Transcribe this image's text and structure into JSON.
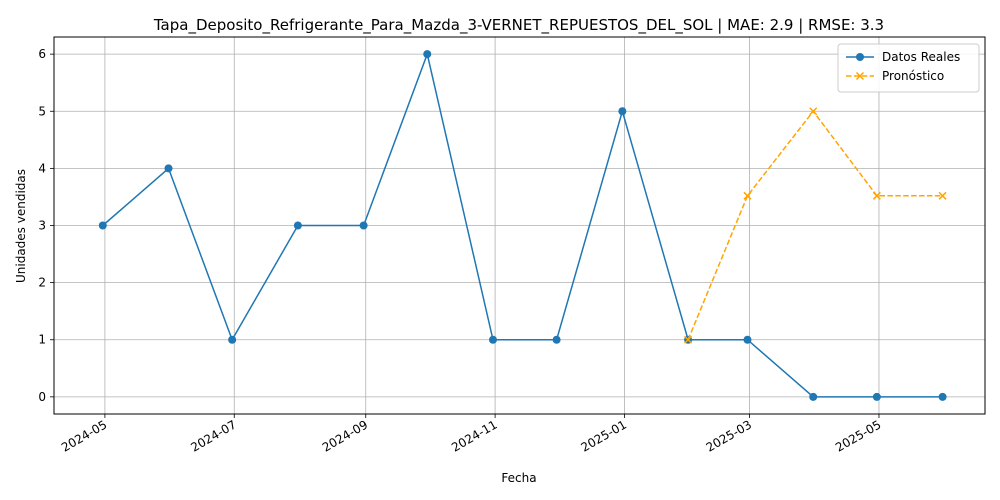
{
  "chart_data": {
    "type": "line",
    "title": "Tapa_Deposito_Refrigerante_Para_Mazda_3-VERNET_REPUESTOS_DEL_SOL | MAE: 2.9 | RMSE: 3.3",
    "xlabel": "Fecha",
    "ylabel": "Unidades vendidas",
    "xlim": [
      "2024-04-07",
      "2025-06-20"
    ],
    "ylim": [
      -0.3,
      6.3
    ],
    "x_ticks": [
      "2024-05",
      "2024-07",
      "2024-09",
      "2024-11",
      "2025-01",
      "2025-03",
      "2025-05"
    ],
    "x_tick_dates": [
      "2024-05-01",
      "2024-07-01",
      "2024-09-01",
      "2024-11-01",
      "2025-01-01",
      "2025-03-01",
      "2025-05-01"
    ],
    "y_ticks": [
      0,
      1,
      2,
      3,
      4,
      5,
      6
    ],
    "grid": true,
    "legend_position": "top-right",
    "series": [
      {
        "name": "Datos Reales",
        "color": "#1f77b4",
        "marker": "circle",
        "line_style": "solid",
        "x": [
          "2024-04-30",
          "2024-05-31",
          "2024-06-30",
          "2024-07-31",
          "2024-08-31",
          "2024-09-30",
          "2024-10-31",
          "2024-11-30",
          "2024-12-31",
          "2025-01-31",
          "2025-02-28",
          "2025-03-31",
          "2025-04-30",
          "2025-05-31"
        ],
        "values": [
          3,
          4,
          1,
          3,
          3,
          6,
          1,
          1,
          5,
          1,
          1,
          0,
          0,
          0
        ]
      },
      {
        "name": "Pronóstico",
        "color": "#ffa500",
        "marker": "x",
        "line_style": "dashed",
        "x": [
          "2025-01-31",
          "2025-02-28",
          "2025-03-31",
          "2025-04-30",
          "2025-05-31"
        ],
        "values": [
          1,
          3.52,
          5,
          3.52,
          3.52
        ]
      }
    ]
  }
}
